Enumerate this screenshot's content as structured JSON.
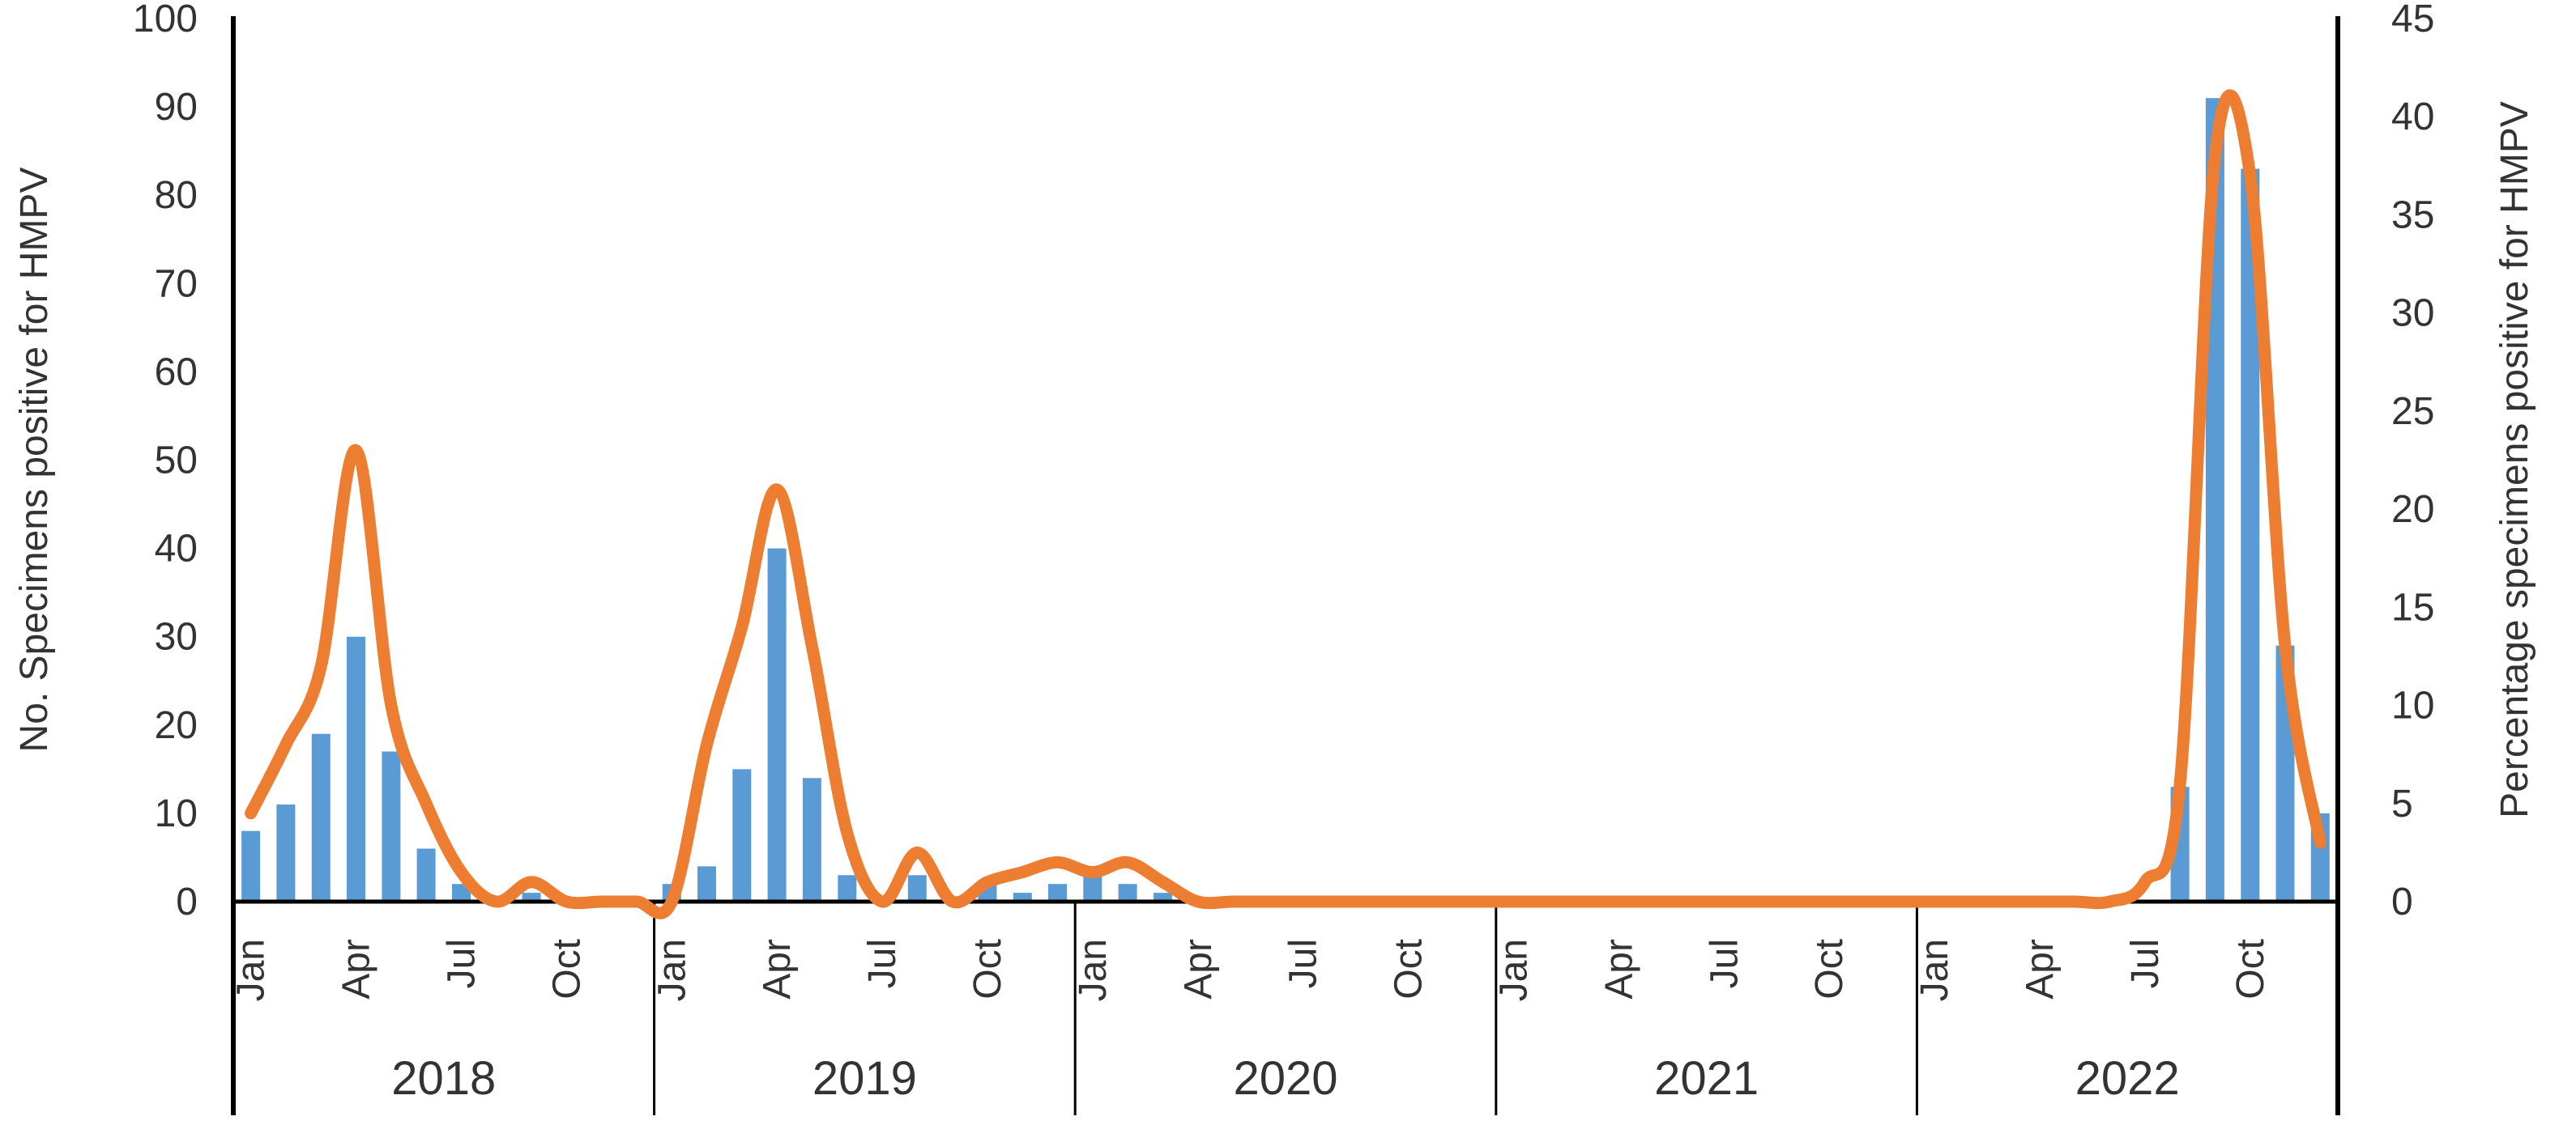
{
  "chart_data": {
    "type": "bar",
    "subtype": "combo-bar-line-dual-axis",
    "years": [
      "2018",
      "2019",
      "2020",
      "2021",
      "2022"
    ],
    "months_per_year": 12,
    "month_tick_labels": [
      "Jan",
      "Apr",
      "Jul",
      "Oct"
    ],
    "left_axis": {
      "title": "No. Specimens positive for HMPV",
      "min": 0,
      "max": 100,
      "ticks": [
        0,
        10,
        20,
        30,
        40,
        50,
        60,
        70,
        80,
        90,
        100
      ]
    },
    "right_axis": {
      "title": "Percentage specimens positive for HMPV",
      "min": 0,
      "max": 45,
      "ticks": [
        0,
        5,
        10,
        15,
        20,
        25,
        30,
        35,
        40,
        45
      ]
    },
    "legend": "none",
    "gridlines": false,
    "series": [
      {
        "name": "No. Specimens positive for HMPV",
        "kind": "bar",
        "axis": "left",
        "color": "#5B9BD5",
        "values": [
          8,
          11,
          19,
          30,
          17,
          6,
          2,
          0,
          1,
          0,
          0,
          0,
          2,
          4,
          15,
          40,
          14,
          3,
          0,
          3,
          0,
          2,
          1,
          2,
          3,
          2,
          1,
          0,
          0,
          0,
          0,
          0,
          0,
          0,
          0,
          0,
          0,
          0,
          0,
          0,
          0,
          0,
          0,
          0,
          0,
          0,
          0,
          0,
          0,
          0,
          0,
          0,
          0,
          0,
          0,
          13,
          91,
          83,
          29,
          10
        ]
      },
      {
        "name": "Percentage specimens positive for HMPV",
        "kind": "line",
        "axis": "right",
        "color": "#ED7D31",
        "values": [
          4.5,
          8,
          12,
          23,
          10,
          5,
          1.5,
          0,
          1,
          0,
          0,
          0,
          0,
          8,
          14,
          21,
          13,
          3.5,
          0,
          2.5,
          0,
          1,
          1.5,
          2,
          1.5,
          2,
          1,
          0,
          0,
          0,
          0,
          0,
          0,
          0,
          0,
          0,
          0,
          0,
          0,
          0,
          0,
          0,
          0,
          0,
          0,
          0,
          0,
          0,
          0,
          0,
          0,
          0,
          0,
          0,
          1,
          6,
          38,
          37,
          13,
          3
        ]
      }
    ],
    "colors": {
      "bar": "#5B9BD5",
      "line": "#ED7D31",
      "axis_line": "#000000",
      "label_text": "#333333"
    }
  }
}
